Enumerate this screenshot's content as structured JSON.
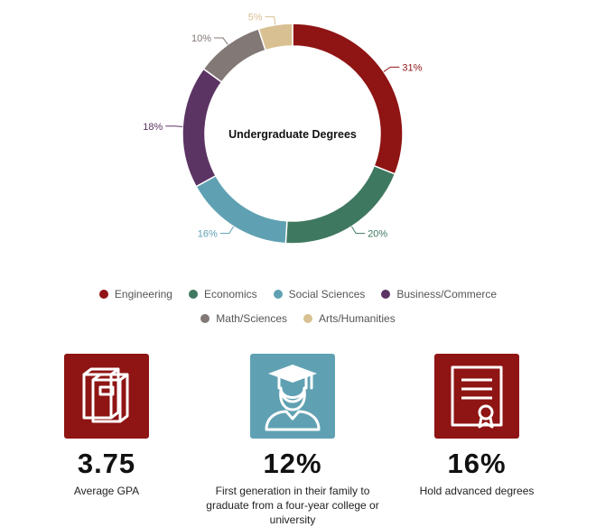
{
  "chart_data": {
    "type": "pie",
    "title": "Undergraduate Degrees",
    "categories": [
      "Engineering",
      "Economics",
      "Social Sciences",
      "Business/Commerce",
      "Math/Sciences",
      "Arts/Humanities"
    ],
    "values": [
      31,
      20,
      16,
      18,
      10,
      5
    ],
    "data_labels": [
      "31%",
      "20%",
      "16%",
      "18%",
      "10%",
      "5%"
    ],
    "colors": [
      "#8f1414",
      "#3f7860",
      "#5fa1b2",
      "#5c3464",
      "#827875",
      "#d8c092"
    ],
    "legend_position": "bottom"
  },
  "stats": [
    {
      "value": "3.75",
      "caption": "Average GPA",
      "icon": "books-icon",
      "color": "#8f1414"
    },
    {
      "value": "12%",
      "caption": "First generation in their family to graduate from a four-year college or university",
      "icon": "graduate-icon",
      "color": "#5fa1b2"
    },
    {
      "value": "16%",
      "caption": "Hold advanced degrees",
      "icon": "certificate-icon",
      "color": "#8f1414"
    }
  ]
}
